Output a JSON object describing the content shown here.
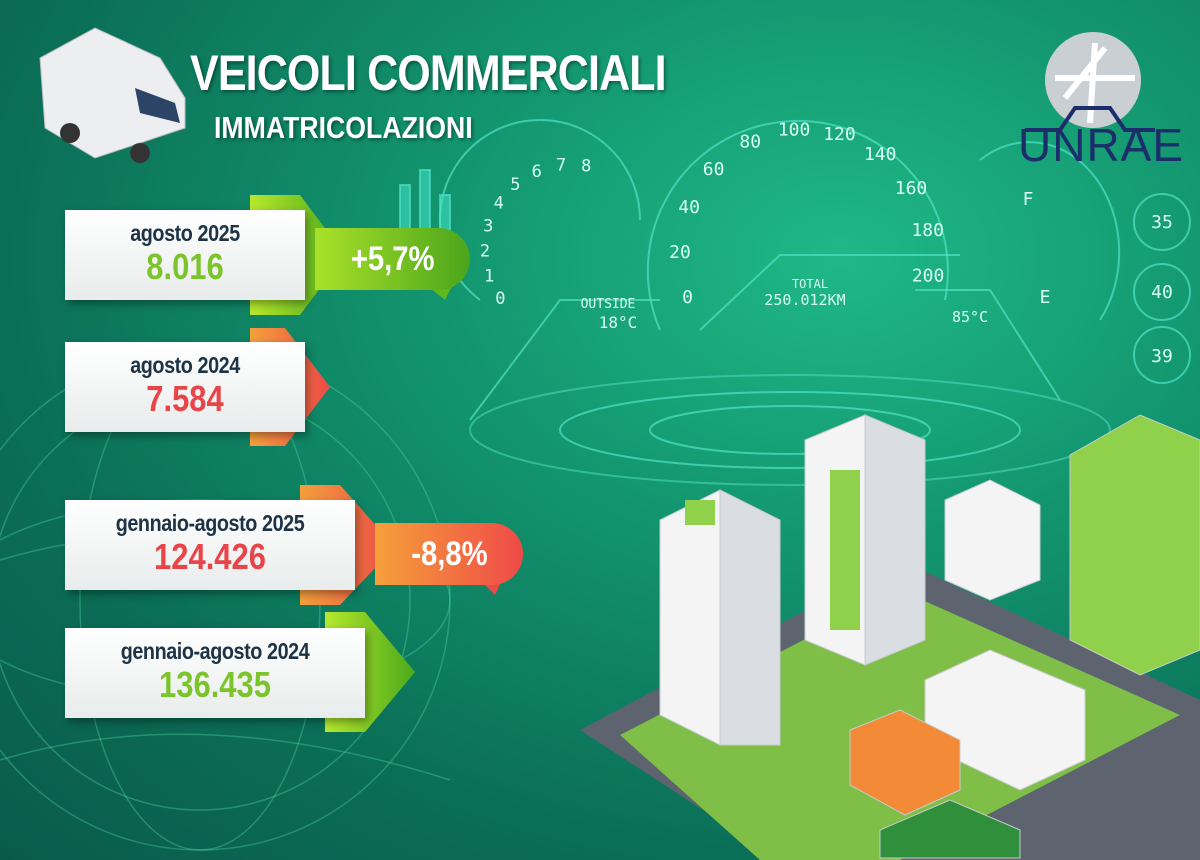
{
  "header": {
    "title": "VEICOLI COMMERCIALI",
    "subtitle": "IMMATRICOLAZIONI"
  },
  "logo": {
    "text": "UNRAE",
    "icon": "unrae-logo"
  },
  "cards": [
    {
      "label": "agosto 2025",
      "value": "8.016",
      "color": "#7cc42b"
    },
    {
      "label": "agosto 2024",
      "value": "7.584",
      "color": "#e8454a"
    },
    {
      "label": "gennaio-agosto 2025",
      "value": "124.426",
      "color": "#e8454a"
    },
    {
      "label": "gennaio-agosto 2024",
      "value": "136.435",
      "color": "#7cc42b"
    }
  ],
  "badges": [
    {
      "text": "+5,7%",
      "color": "#6cbf1e"
    },
    {
      "text": "-8,8%",
      "color": "#f0524a"
    }
  ],
  "dashboard": {
    "speed_ticks": [
      "0",
      "20",
      "40",
      "60",
      "80",
      "100",
      "120",
      "140",
      "160",
      "180",
      "200"
    ],
    "rpm_ticks": [
      "0",
      "1",
      "2",
      "3",
      "4",
      "5",
      "6",
      "7",
      "8"
    ],
    "outside_label": "OUTSIDE",
    "outside_temp": "18°C",
    "total_label": "TOTAL",
    "total_km": "250.012KM",
    "engine_temp": "85°C",
    "fuel_full": "F",
    "fuel_empty": "E",
    "tire_pressures": [
      "35",
      "40",
      "39"
    ]
  },
  "colors": {
    "green": "#7cc42b",
    "red": "#e8454a",
    "navy": "#1d3346",
    "bg": "#12946e"
  }
}
